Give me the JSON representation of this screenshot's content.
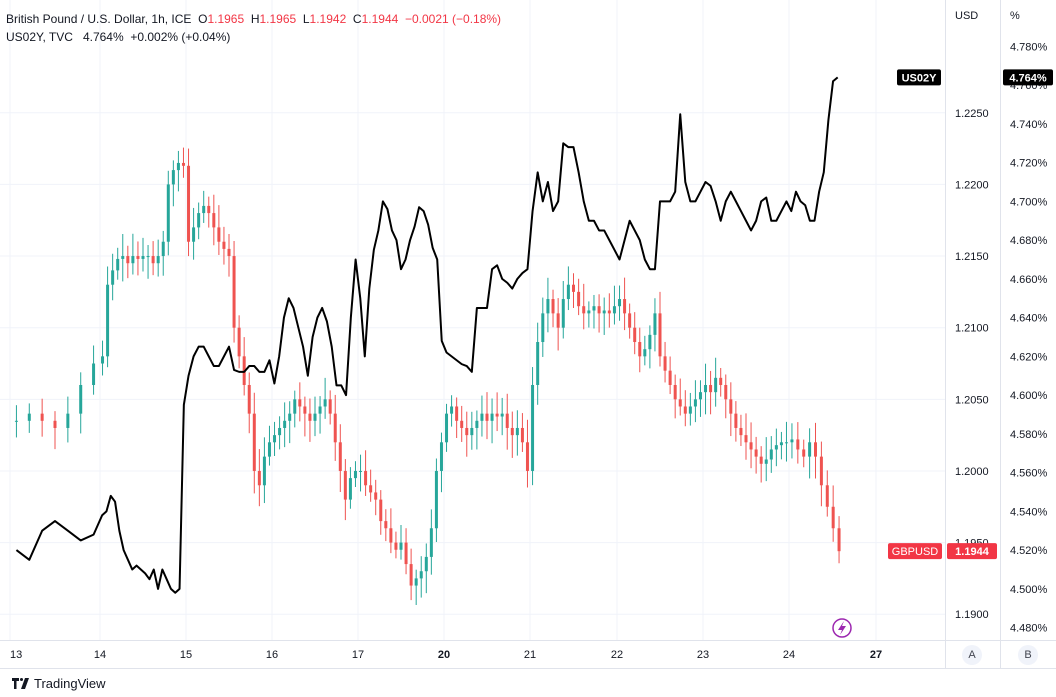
{
  "legend_main": {
    "symbol": "British Pound / U.S. Dollar, 1h, ICE",
    "o_label": "O",
    "o_value": "1.1965",
    "h_label": "H",
    "h_value": "1.1965",
    "l_label": "L",
    "l_value": "1.1942",
    "c_label": "C",
    "c_value": "1.1944",
    "change": "−0.0021 (−0.18%)"
  },
  "legend_overlay": {
    "symbol": "US02Y, TVC",
    "value": "4.764%",
    "change": "+0.002% (+0.04%)"
  },
  "axes_header": {
    "left_unit": "USD",
    "right_unit": "%"
  },
  "badges": {
    "us02y_name": "US02Y",
    "us02y_value": "4.764%",
    "gbpusd_name": "GBPUSD",
    "gbpusd_value": "1.1944"
  },
  "scale_buttons": {
    "a": "A",
    "b": "B"
  },
  "branding": "TradingView",
  "colors": {
    "up": "#26a69a",
    "down": "#ef5350",
    "line": "#000000",
    "badge_dark": "#000000",
    "badge_red": "#f23645",
    "flash": "#9c27b0"
  },
  "chart_data": {
    "type": "candlestick+line",
    "title": "British Pound / U.S. Dollar, 1h, ICE",
    "x_tick_labels": [
      "13",
      "14",
      "15",
      "16",
      "17",
      "20",
      "21",
      "22",
      "23",
      "24",
      "27"
    ],
    "y_left": {
      "unit": "USD",
      "ticks": [
        "1.2250",
        "1.2200",
        "1.2150",
        "1.2100",
        "1.2050",
        "1.2000",
        "1.1950",
        "1.1900"
      ],
      "range": [
        1.1882,
        1.2305
      ]
    },
    "y_right": {
      "unit": "%",
      "ticks": [
        "4.780%",
        "4.760%",
        "4.740%",
        "4.720%",
        "4.700%",
        "4.680%",
        "4.660%",
        "4.640%",
        "4.620%",
        "4.600%",
        "4.580%",
        "4.560%",
        "4.540%",
        "4.520%",
        "4.500%",
        "4.480%"
      ],
      "range": [
        4.4736,
        4.7864
      ]
    },
    "gbpusd_close_by_trading_day": [
      {
        "day": "13",
        "closes": [
          1.2035,
          1.204,
          1.2035,
          1.203,
          1.204,
          1.206,
          1.2075
        ]
      },
      {
        "day": "14",
        "closes": [
          1.208,
          1.213,
          1.214,
          1.2148,
          1.215,
          1.2145,
          1.215,
          1.2148,
          1.215,
          1.215,
          1.2145,
          1.215,
          1.216,
          1.22,
          1.221,
          1.2215,
          1.2213
        ]
      },
      {
        "day": "15",
        "closes": [
          1.216,
          1.217,
          1.218,
          1.2185,
          1.218,
          1.217,
          1.216,
          1.2155,
          1.215,
          1.21,
          1.208,
          1.206,
          1.204,
          1.2,
          1.199,
          1.201,
          1.202
        ]
      },
      {
        "day": "16",
        "closes": [
          1.2025,
          1.203,
          1.2035,
          1.204,
          1.205,
          1.2045,
          1.204,
          1.2035,
          1.204,
          1.2045,
          1.205,
          1.204,
          1.202,
          1.2,
          1.198,
          1.1995,
          1.2
        ]
      },
      {
        "day": "17",
        "closes": [
          1.2,
          1.199,
          1.1985,
          1.198,
          1.1965,
          1.196,
          1.195,
          1.1945,
          1.195,
          1.1935,
          1.192,
          1.1925,
          1.193,
          1.194,
          1.196,
          1.2,
          1.202
        ]
      },
      {
        "day": "20",
        "closes": [
          1.204,
          1.2045,
          1.2035,
          1.203,
          1.2025,
          1.203,
          1.2035,
          1.204,
          1.2035,
          1.204,
          1.2038,
          1.204,
          1.203,
          1.2025,
          1.203,
          1.202,
          1.2
        ]
      },
      {
        "day": "21",
        "closes": [
          1.206,
          1.209,
          1.211,
          1.212,
          1.211,
          1.21,
          1.212,
          1.213,
          1.2125,
          1.2115,
          1.211,
          1.2112,
          1.2115,
          1.211,
          1.2112,
          1.211,
          1.2115
        ]
      },
      {
        "day": "22",
        "closes": [
          1.212,
          1.211,
          1.21,
          1.209,
          1.208,
          1.2085,
          1.2095,
          1.211,
          1.208,
          1.207,
          1.206,
          1.205,
          1.2045,
          1.204,
          1.2045,
          1.205,
          1.2055
        ]
      },
      {
        "day": "23",
        "closes": [
          1.206,
          1.2055,
          1.2065,
          1.206,
          1.205,
          1.204,
          1.203,
          1.2025,
          1.202,
          1.2015,
          1.201,
          1.2005,
          1.2008,
          1.2015,
          1.2018,
          1.202,
          1.202
        ]
      },
      {
        "day": "24",
        "closes": [
          1.2022,
          1.2015,
          1.201,
          1.202,
          1.201,
          1.199,
          1.1975,
          1.196,
          1.1944
        ]
      }
    ],
    "us02y_pct_by_trading_day": [
      {
        "day": "13",
        "values": [
          4.52,
          4.515,
          4.53,
          4.535,
          4.53,
          4.525,
          4.528
        ]
      },
      {
        "day": "14",
        "values": [
          4.538,
          4.54,
          4.548,
          4.545,
          4.53,
          4.52,
          4.515,
          4.51,
          4.512,
          4.51,
          4.508,
          4.505,
          4.51,
          4.5,
          4.51,
          4.505,
          4.5,
          4.498,
          4.5,
          4.595
        ]
      },
      {
        "day": "15",
        "values": [
          4.61,
          4.62,
          4.625,
          4.625,
          4.62,
          4.615,
          4.615,
          4.62,
          4.625,
          4.613,
          4.612,
          4.612,
          4.615,
          4.615,
          4.612,
          4.612,
          4.618
        ]
      },
      {
        "day": "16",
        "values": [
          4.606,
          4.62,
          4.64,
          4.65,
          4.645,
          4.635,
          4.625,
          4.61,
          4.63,
          4.64,
          4.645,
          4.638,
          4.625,
          4.605,
          4.605,
          4.6,
          4.64,
          4.67
        ]
      },
      {
        "day": "17",
        "values": [
          4.65,
          4.62,
          4.655,
          4.675,
          4.685,
          4.7,
          4.696,
          4.685,
          4.68,
          4.665,
          4.67,
          4.68,
          4.687,
          4.697,
          4.695,
          4.688,
          4.676,
          4.67,
          4.628
        ]
      },
      {
        "day": "20",
        "values": [
          4.622,
          4.62,
          4.618,
          4.616,
          4.615,
          4.612,
          4.645,
          4.645,
          4.645,
          4.665,
          4.667,
          4.66,
          4.658,
          4.655,
          4.66,
          4.663,
          4.665
        ]
      },
      {
        "day": "21",
        "values": [
          4.695,
          4.715,
          4.7,
          4.71,
          4.695,
          4.7,
          4.73,
          4.728,
          4.728,
          4.715,
          4.7,
          4.69,
          4.69,
          4.685,
          4.685,
          4.68,
          4.675
        ]
      },
      {
        "day": "22",
        "values": [
          4.67,
          4.68,
          4.69,
          4.685,
          4.68,
          4.67,
          4.665,
          4.665,
          4.7,
          4.7,
          4.7,
          4.705,
          4.745,
          4.71,
          4.7,
          4.7,
          4.705
        ]
      },
      {
        "day": "23",
        "values": [
          4.71,
          4.708,
          4.7,
          4.69,
          4.7,
          4.705,
          4.7,
          4.695,
          4.69,
          4.685,
          4.69,
          4.7,
          4.702,
          4.69,
          4.69,
          4.695,
          4.7
        ]
      },
      {
        "day": "24",
        "values": [
          4.695,
          4.705,
          4.7,
          4.698,
          4.69,
          4.69,
          4.705,
          4.715,
          4.742,
          4.762,
          4.764
        ]
      }
    ]
  }
}
